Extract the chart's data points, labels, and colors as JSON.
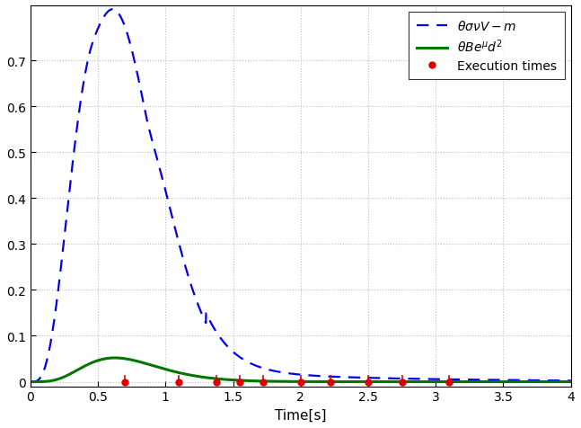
{
  "title": "",
  "xlabel": "Time[s]",
  "ylabel": "",
  "xlim": [
    0,
    4
  ],
  "ylim": [
    -0.01,
    0.82
  ],
  "yticks": [
    0.0,
    0.1,
    0.2,
    0.3,
    0.4,
    0.5,
    0.6,
    0.7
  ],
  "xticks": [
    0,
    0.5,
    1.0,
    1.5,
    2.0,
    2.5,
    3.0,
    3.5,
    4.0
  ],
  "blue_color": "#0000EE",
  "green_color": "#007700",
  "red_color": "#DD0000",
  "background_color": "#ffffff",
  "grid_color": "#aaaaaa",
  "legend_labels": [
    "$\\theta\\sigma\\nu V-m$",
    "$\\theta Be^{\\mu}d^2$",
    "Execution times"
  ],
  "execution_times": [
    0.7,
    1.1,
    1.38,
    1.55,
    1.72,
    2.0,
    2.22,
    2.5,
    2.75,
    3.1
  ]
}
